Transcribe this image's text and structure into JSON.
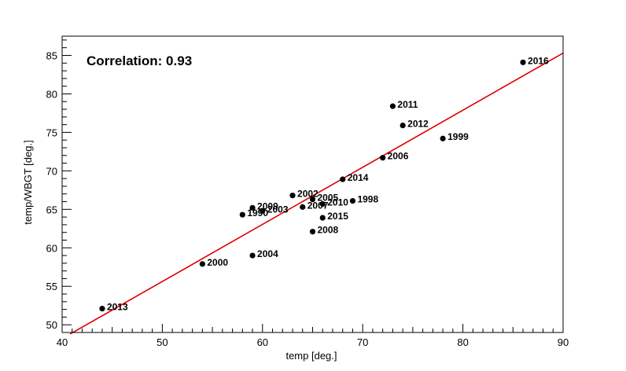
{
  "chart_data": {
    "type": "scatter",
    "title": "",
    "xlabel": "temp [deg.]",
    "ylabel": "temp/WBGT [deg.]",
    "xlim": [
      40,
      90
    ],
    "ylim": [
      49,
      87.5
    ],
    "xticks": [
      40,
      50,
      60,
      70,
      80,
      90
    ],
    "yticks": [
      50,
      55,
      60,
      65,
      70,
      75,
      80,
      85
    ],
    "grid": false,
    "annotation": "Correlation: 0.93",
    "fit_line": {
      "x": [
        40.8,
        90
      ],
      "y": [
        48.8,
        85.3
      ],
      "color": "#dd0000"
    },
    "marker_color": "#000000",
    "points": [
      {
        "label": "2016",
        "x": 86,
        "y": 84.1
      },
      {
        "label": "2011",
        "x": 73,
        "y": 78.4
      },
      {
        "label": "2012",
        "x": 74,
        "y": 75.9
      },
      {
        "label": "1999",
        "x": 78,
        "y": 74.2
      },
      {
        "label": "2006",
        "x": 72,
        "y": 71.7
      },
      {
        "label": "2014",
        "x": 68,
        "y": 68.9
      },
      {
        "label": "2002",
        "x": 63,
        "y": 66.8
      },
      {
        "label": "2005",
        "x": 65,
        "y": 66.3
      },
      {
        "label": "1998",
        "x": 69,
        "y": 66.1
      },
      {
        "label": "2010",
        "x": 66,
        "y": 65.7
      },
      {
        "label": "2007",
        "x": 64,
        "y": 65.3
      },
      {
        "label": "2009",
        "x": 59,
        "y": 65.2
      },
      {
        "label": "2003",
        "x": 60,
        "y": 64.8
      },
      {
        "label": "1990",
        "x": 58,
        "y": 64.3
      },
      {
        "label": "2015",
        "x": 66,
        "y": 63.9
      },
      {
        "label": "2008",
        "x": 65,
        "y": 62.1
      },
      {
        "label": "2004",
        "x": 59,
        "y": 59.0
      },
      {
        "label": "2000",
        "x": 54,
        "y": 57.9
      },
      {
        "label": "2013",
        "x": 44,
        "y": 52.1
      }
    ]
  }
}
